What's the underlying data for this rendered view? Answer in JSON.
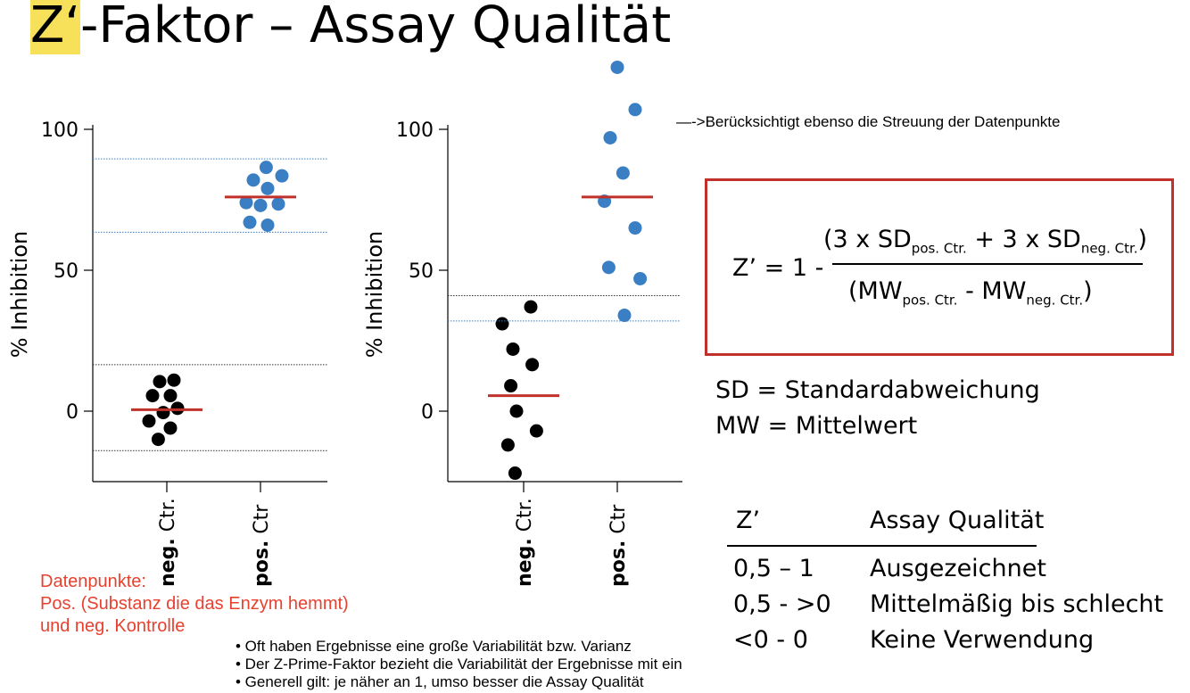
{
  "title": {
    "highlight": "Z‘",
    "rest": "-Faktor – Assay Qualität"
  },
  "note_arrow": "—->Berücksichtigt ebenso die Streuung der Datenpunkte",
  "chart_data": [
    {
      "type": "scatter",
      "ylabel": "% Inhibition",
      "yticks": [
        0,
        50,
        100
      ],
      "ylim": [
        -25,
        105
      ],
      "categories": [
        "neg. Ctr.",
        "pos. Ctr"
      ],
      "series": [
        {
          "category": "neg. Ctr.",
          "color": "#000000",
          "points": [
            [
              -0.2,
              5.5
            ],
            [
              -0.1,
              10.5
            ],
            [
              0.1,
              11
            ],
            [
              0.05,
              5.5
            ],
            [
              -0.05,
              -0.5
            ],
            [
              0.15,
              1
            ],
            [
              -0.25,
              -3.5
            ],
            [
              0.05,
              -6
            ],
            [
              -0.12,
              -10
            ]
          ],
          "mean": 0.5,
          "sd_lines": [
            16.5,
            -14
          ]
        },
        {
          "category": "pos. Ctr",
          "color": "#3a7fc4",
          "points": [
            [
              -0.1,
              82
            ],
            [
              0.08,
              86.5
            ],
            [
              0.1,
              79
            ],
            [
              0.3,
              83.5
            ],
            [
              -0.2,
              74
            ],
            [
              0.0,
              73
            ],
            [
              0.25,
              73.5
            ],
            [
              -0.15,
              67
            ],
            [
              0.1,
              66
            ]
          ],
          "mean": 76,
          "sd_lines": [
            89.5,
            63.5
          ]
        }
      ]
    },
    {
      "type": "scatter",
      "ylabel": "% Inhibition",
      "yticks": [
        0,
        50,
        100
      ],
      "ylim": [
        -25,
        105
      ],
      "categories": [
        "neg. Ctr.",
        "pos. Ctr"
      ],
      "series": [
        {
          "category": "neg. Ctr.",
          "color": "#000000",
          "points": [
            [
              -0.3,
              31
            ],
            [
              0.1,
              37
            ],
            [
              -0.15,
              22
            ],
            [
              0.12,
              16.5
            ],
            [
              -0.18,
              9
            ],
            [
              -0.1,
              0
            ],
            [
              0.18,
              -7
            ],
            [
              -0.22,
              -12
            ],
            [
              -0.12,
              -22
            ]
          ],
          "mean": 5.5,
          "sd_lines": [
            41
          ]
        },
        {
          "category": "pos. Ctr",
          "color": "#3a7fc4",
          "points": [
            [
              0.0,
              122
            ],
            [
              0.25,
              107
            ],
            [
              -0.1,
              97
            ],
            [
              0.08,
              84.5
            ],
            [
              -0.18,
              74.5
            ],
            [
              0.25,
              65
            ],
            [
              -0.12,
              51
            ],
            [
              0.32,
              47
            ],
            [
              0.1,
              34
            ]
          ],
          "mean": 76,
          "sd_lines": [
            32
          ]
        }
      ]
    }
  ],
  "datapunkte": {
    "line1": "Datenpunkte:",
    "line2": "Pos. (Substanz die das Enzym hemmt)",
    "line3": "und neg. Kontrolle"
  },
  "bullets": [
    "• Oft haben Ergebnisse eine große Variabilität bzw. Varianz",
    "• Der Z-Prime-Faktor bezieht die Variabilität der Ergebnisse mit ein",
    "• Generell gilt: je näher an 1, umso besser die Assay Qualität"
  ],
  "formula": {
    "lhs": "Z’ = 1 -",
    "num_open": "(3 x SD",
    "num_sub1": "pos. Ctr.",
    "num_mid": " + 3 x SD",
    "num_sub2": "neg. Ctr.",
    "num_close": ")",
    "den_open": "(MW",
    "den_sub1": "pos. Ctr.",
    "den_mid": " - MW",
    "den_sub2": "neg. Ctr.",
    "den_close": ")"
  },
  "definitions": {
    "sd": "SD = Standardabweichung",
    "mw": "MW = Mittelwert"
  },
  "quality_table": {
    "header_z": "Z’",
    "header_q": "Assay Qualität",
    "rows": [
      {
        "z": "0,5 – 1",
        "q": "Ausgezeichnet"
      },
      {
        "z": "0,5 - >0",
        "q": "Mittelmäßig bis schlecht"
      },
      {
        "z": "<0 - 0",
        "q": "Keine Verwendung"
      }
    ]
  },
  "colors": {
    "accent_red": "#c0312b",
    "blue": "#3a7fc4",
    "highlight": "#f7e15a",
    "note_red": "#e8412f"
  }
}
